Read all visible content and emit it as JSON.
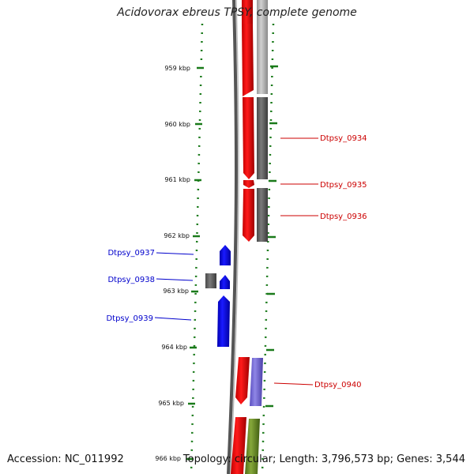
{
  "header": {
    "title": "Acidovorax ebreus TPSY, complete genome"
  },
  "footer": {
    "accession": "Accession: NC_011992",
    "summary": "Topology: circular; Length: 3,796,573 bp; Genes: 3,544"
  },
  "ruler": {
    "ticks": [
      {
        "label": "959 kbp"
      },
      {
        "label": "960 kbp"
      },
      {
        "label": "961 kbp"
      },
      {
        "label": "962 kbp"
      },
      {
        "label": "963 kbp"
      },
      {
        "label": "964 kbp"
      },
      {
        "label": "965 kbp"
      },
      {
        "label": "966 kbp"
      }
    ]
  },
  "genes": [
    {
      "name": "Dtpsy_0934",
      "strand": "reverse",
      "color": "#cc0000"
    },
    {
      "name": "Dtpsy_0935",
      "strand": "reverse",
      "color": "#cc0000"
    },
    {
      "name": "Dtpsy_0936",
      "strand": "reverse",
      "color": "#cc0000"
    },
    {
      "name": "Dtpsy_0937",
      "strand": "forward",
      "color": "#0000cc"
    },
    {
      "name": "Dtpsy_0938",
      "strand": "forward",
      "color": "#0000cc"
    },
    {
      "name": "Dtpsy_0939",
      "strand": "forward",
      "color": "#0000cc"
    },
    {
      "name": "Dtpsy_0940",
      "strand": "reverse",
      "color": "#cc0000"
    }
  ],
  "colors": {
    "cds_reverse": "#ff0000",
    "cds_forward": "#0000ff",
    "gene_gray": "#666666",
    "gene_light": "#b8b8b8",
    "gene_purple": "#7b6fd6",
    "gene_olive": "#6f8f2a",
    "ruler_green": "#1a7a1a"
  }
}
